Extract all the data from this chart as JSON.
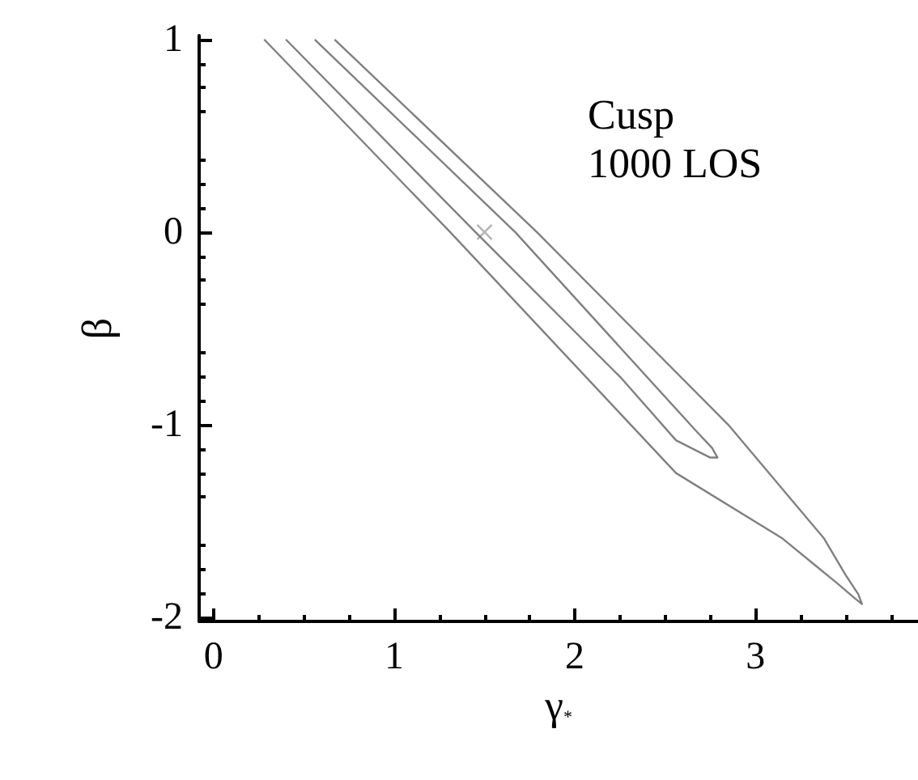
{
  "chart_data": {
    "type": "line",
    "xlabel": "γ$_{*}$",
    "ylabel": "β",
    "annotations": [
      "Cusp",
      "1000 LOS"
    ],
    "xlim": [
      -0.08,
      3.9
    ],
    "ylim": [
      -2.02,
      1.02
    ],
    "xticks": [
      0,
      1,
      2,
      3
    ],
    "yticks": [
      -2,
      -1,
      0,
      1
    ],
    "line_style": "solid",
    "marker": "none",
    "series": [
      {
        "color": "#808080",
        "x": [
          0.28,
          1.31,
          2.56,
          3.15,
          3.45,
          3.55,
          3.59,
          3.57,
          3.5,
          3.38,
          2.85,
          1.79,
          0.67
        ],
        "values": [
          1.0,
          0,
          -1.25,
          -1.59,
          -1.82,
          -1.9,
          -1.93,
          -1.88,
          -1.78,
          -1.59,
          -1.0,
          0,
          1.0
        ]
      },
      {
        "color": "#808080",
        "x": [
          0.4,
          1.45,
          2.26,
          2.56,
          2.75,
          2.79,
          2.76,
          2.67,
          1.67,
          0.56
        ],
        "values": [
          1.0,
          0,
          -0.76,
          -1.08,
          -1.17,
          -1.17,
          -1.12,
          -1.03,
          0,
          1.0
        ]
      },
      {
        "type": "scatter",
        "marker": "cross",
        "color": "#a0a0a0",
        "x": [
          1.5
        ],
        "values": [
          0
        ]
      }
    ]
  }
}
